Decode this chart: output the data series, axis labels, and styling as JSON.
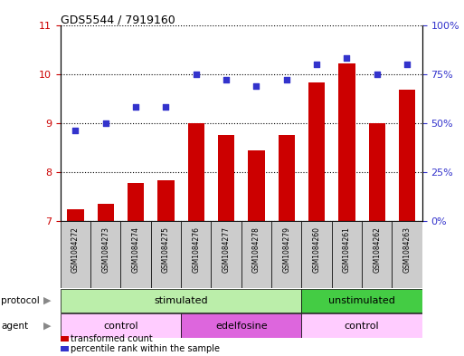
{
  "title": "GDS5544 / 7919160",
  "samples": [
    "GSM1084272",
    "GSM1084273",
    "GSM1084274",
    "GSM1084275",
    "GSM1084276",
    "GSM1084277",
    "GSM1084278",
    "GSM1084279",
    "GSM1084260",
    "GSM1084261",
    "GSM1084262",
    "GSM1084263"
  ],
  "transformed_count": [
    7.23,
    7.35,
    7.77,
    7.82,
    9.0,
    8.76,
    8.44,
    8.76,
    9.82,
    10.22,
    9.0,
    9.67
  ],
  "percentile_rank": [
    46,
    50,
    58,
    58,
    75,
    72,
    69,
    72,
    80,
    83,
    75,
    80
  ],
  "bar_color": "#cc0000",
  "dot_color": "#3333cc",
  "ylim_left": [
    7,
    11
  ],
  "ylim_right": [
    0,
    100
  ],
  "yticks_left": [
    7,
    8,
    9,
    10,
    11
  ],
  "yticks_right": [
    0,
    25,
    50,
    75,
    100
  ],
  "ytick_labels_right": [
    "0%",
    "25%",
    "50%",
    "75%",
    "100%"
  ],
  "protocol_groups": [
    {
      "label": "stimulated",
      "cols": [
        0,
        1,
        2,
        3,
        4,
        5,
        6,
        7
      ],
      "color": "#bbeeaa"
    },
    {
      "label": "unstimulated",
      "cols": [
        8,
        9,
        10,
        11
      ],
      "color": "#44cc44"
    }
  ],
  "agent_groups": [
    {
      "label": "control",
      "cols": [
        0,
        1,
        2,
        3
      ],
      "color": "#ffccff"
    },
    {
      "label": "edelfosine",
      "cols": [
        4,
        5,
        6,
        7
      ],
      "color": "#dd66dd"
    },
    {
      "label": "control",
      "cols": [
        8,
        9,
        10,
        11
      ],
      "color": "#ffccff"
    }
  ],
  "legend_items": [
    {
      "label": "transformed count",
      "color": "#cc0000"
    },
    {
      "label": "percentile rank within the sample",
      "color": "#3333cc"
    }
  ],
  "background_color": "#ffffff",
  "sample_bg_color": "#cccccc",
  "tick_color_left": "#cc0000",
  "tick_color_right": "#3333cc"
}
